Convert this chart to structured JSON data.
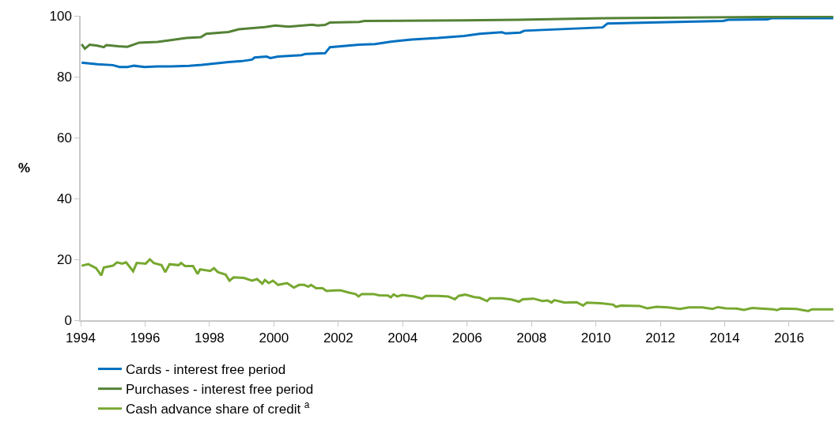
{
  "chart_data": {
    "type": "line",
    "ylabel": "%",
    "xlim": [
      1994,
      2017.4
    ],
    "xticks": [
      1994,
      1996,
      1998,
      2000,
      2002,
      2004,
      2006,
      2008,
      2010,
      2012,
      2014,
      2016
    ],
    "ylim": [
      0,
      100
    ],
    "yticks": [
      0,
      20,
      40,
      60,
      80,
      100
    ],
    "legend": "bottom",
    "marker": "none",
    "line_style": "solid",
    "series": [
      {
        "name": "Cards - interest free period",
        "color": "#0070c0",
        "x": [
          1994.03,
          1994.52,
          1995.0,
          1995.21,
          1995.45,
          1995.66,
          1995.98,
          1996.39,
          1996.8,
          1997.37,
          1997.77,
          1998.59,
          1999.0,
          1999.32,
          1999.4,
          1999.77,
          1999.89,
          2000.13,
          2000.86,
          2000.98,
          2001.59,
          2001.74,
          2002.65,
          2003.14,
          2003.63,
          2004.28,
          2005.09,
          2005.9,
          2006.39,
          2007.08,
          2007.2,
          2007.65,
          2007.77,
          2010.21,
          2010.36,
          2011.67,
          2013.95,
          2014.11,
          2015.33,
          2015.45,
          2017.37
        ],
        "values": [
          84.6,
          84.1,
          83.8,
          83.2,
          83.2,
          83.6,
          83.2,
          83.4,
          83.4,
          83.6,
          83.9,
          84.8,
          85.1,
          85.6,
          86.3,
          86.6,
          86.1,
          86.6,
          87.1,
          87.5,
          87.7,
          89.7,
          90.5,
          90.7,
          91.5,
          92.2,
          92.7,
          93.4,
          94.1,
          94.6,
          94.2,
          94.5,
          95.1,
          96.2,
          97.5,
          97.8,
          98.3,
          98.7,
          98.8,
          99.2,
          99.2
        ]
      },
      {
        "name": "Purchases - interest free period",
        "color": "#548235",
        "x": [
          1994.03,
          1994.13,
          1994.28,
          1994.52,
          1994.72,
          1994.8,
          1995.17,
          1995.45,
          1995.82,
          1996.39,
          1996.8,
          1997.28,
          1997.73,
          1997.9,
          1998.59,
          1998.91,
          1999.72,
          2000.05,
          2000.45,
          2001.19,
          2001.35,
          2001.59,
          2001.74,
          2002.65,
          2002.81,
          2005.9,
          2007.61,
          2010.29,
          2017.37
        ],
        "values": [
          90.7,
          89.2,
          90.5,
          90.2,
          89.7,
          90.4,
          90.0,
          89.8,
          91.2,
          91.4,
          92.0,
          92.7,
          93.0,
          94.1,
          94.7,
          95.6,
          96.3,
          96.8,
          96.4,
          97.1,
          96.8,
          97.0,
          97.8,
          98.0,
          98.3,
          98.5,
          98.7,
          99.2,
          99.8
        ]
      },
      {
        "name": "Cash advance share of credit $^{a}$",
        "color": "#77a830",
        "x": [
          1994.03,
          1994.24,
          1994.48,
          1994.64,
          1994.72,
          1995.0,
          1995.13,
          1995.29,
          1995.41,
          1995.63,
          1995.74,
          1996.02,
          1996.15,
          1996.27,
          1996.51,
          1996.63,
          1996.76,
          1997.04,
          1997.12,
          1997.24,
          1997.49,
          1997.63,
          1997.71,
          1998.02,
          1998.14,
          1998.26,
          1998.5,
          1998.62,
          1998.75,
          1999.07,
          1999.32,
          1999.48,
          1999.64,
          1999.72,
          1999.84,
          1999.97,
          2000.13,
          2000.41,
          2000.62,
          2000.78,
          2000.94,
          2001.07,
          2001.15,
          2001.31,
          2001.51,
          2001.63,
          2001.92,
          2002.08,
          2002.32,
          2002.53,
          2002.63,
          2002.73,
          2003.1,
          2003.26,
          2003.54,
          2003.63,
          2003.72,
          2003.83,
          2003.99,
          2004.36,
          2004.6,
          2004.72,
          2005.09,
          2005.41,
          2005.62,
          2005.74,
          2005.94,
          2006.22,
          2006.39,
          2006.62,
          2006.71,
          2007.08,
          2007.37,
          2007.61,
          2007.73,
          2008.06,
          2008.34,
          2008.5,
          2008.62,
          2008.71,
          2009.03,
          2009.4,
          2009.6,
          2009.72,
          2010.13,
          2010.54,
          2010.62,
          2010.78,
          2011.35,
          2011.59,
          2011.88,
          2012.24,
          2012.61,
          2012.89,
          2013.3,
          2013.62,
          2013.79,
          2014.03,
          2014.36,
          2014.6,
          2014.85,
          2015.5,
          2015.62,
          2015.74,
          2016.23,
          2016.59,
          2016.71,
          2017.37
        ],
        "values": [
          17.9,
          18.4,
          17.1,
          14.7,
          17.3,
          17.9,
          19.0,
          18.6,
          19.0,
          16.1,
          18.8,
          18.6,
          20.0,
          18.8,
          18.1,
          15.8,
          18.4,
          18.1,
          18.8,
          17.8,
          17.8,
          15.2,
          16.7,
          16.2,
          17.1,
          15.8,
          15.0,
          13.0,
          14.1,
          13.9,
          13.0,
          13.5,
          12.0,
          13.2,
          12.2,
          13.0,
          11.6,
          12.2,
          10.7,
          11.6,
          11.6,
          11.0,
          11.6,
          10.5,
          10.5,
          9.6,
          9.8,
          9.8,
          9.1,
          8.6,
          7.8,
          8.6,
          8.6,
          8.2,
          8.1,
          7.5,
          8.5,
          7.8,
          8.3,
          7.8,
          7.1,
          8.0,
          8.0,
          7.8,
          6.9,
          8.0,
          8.4,
          7.6,
          7.4,
          6.3,
          7.2,
          7.2,
          6.8,
          6.1,
          6.9,
          7.1,
          6.3,
          6.5,
          5.8,
          6.6,
          5.8,
          5.9,
          4.8,
          5.8,
          5.6,
          5.1,
          4.4,
          4.8,
          4.7,
          3.9,
          4.4,
          4.2,
          3.7,
          4.2,
          4.2,
          3.7,
          4.3,
          3.9,
          3.8,
          3.4,
          4.0,
          3.6,
          3.3,
          3.8,
          3.7,
          3.0,
          3.6,
          3.6
        ]
      }
    ]
  }
}
